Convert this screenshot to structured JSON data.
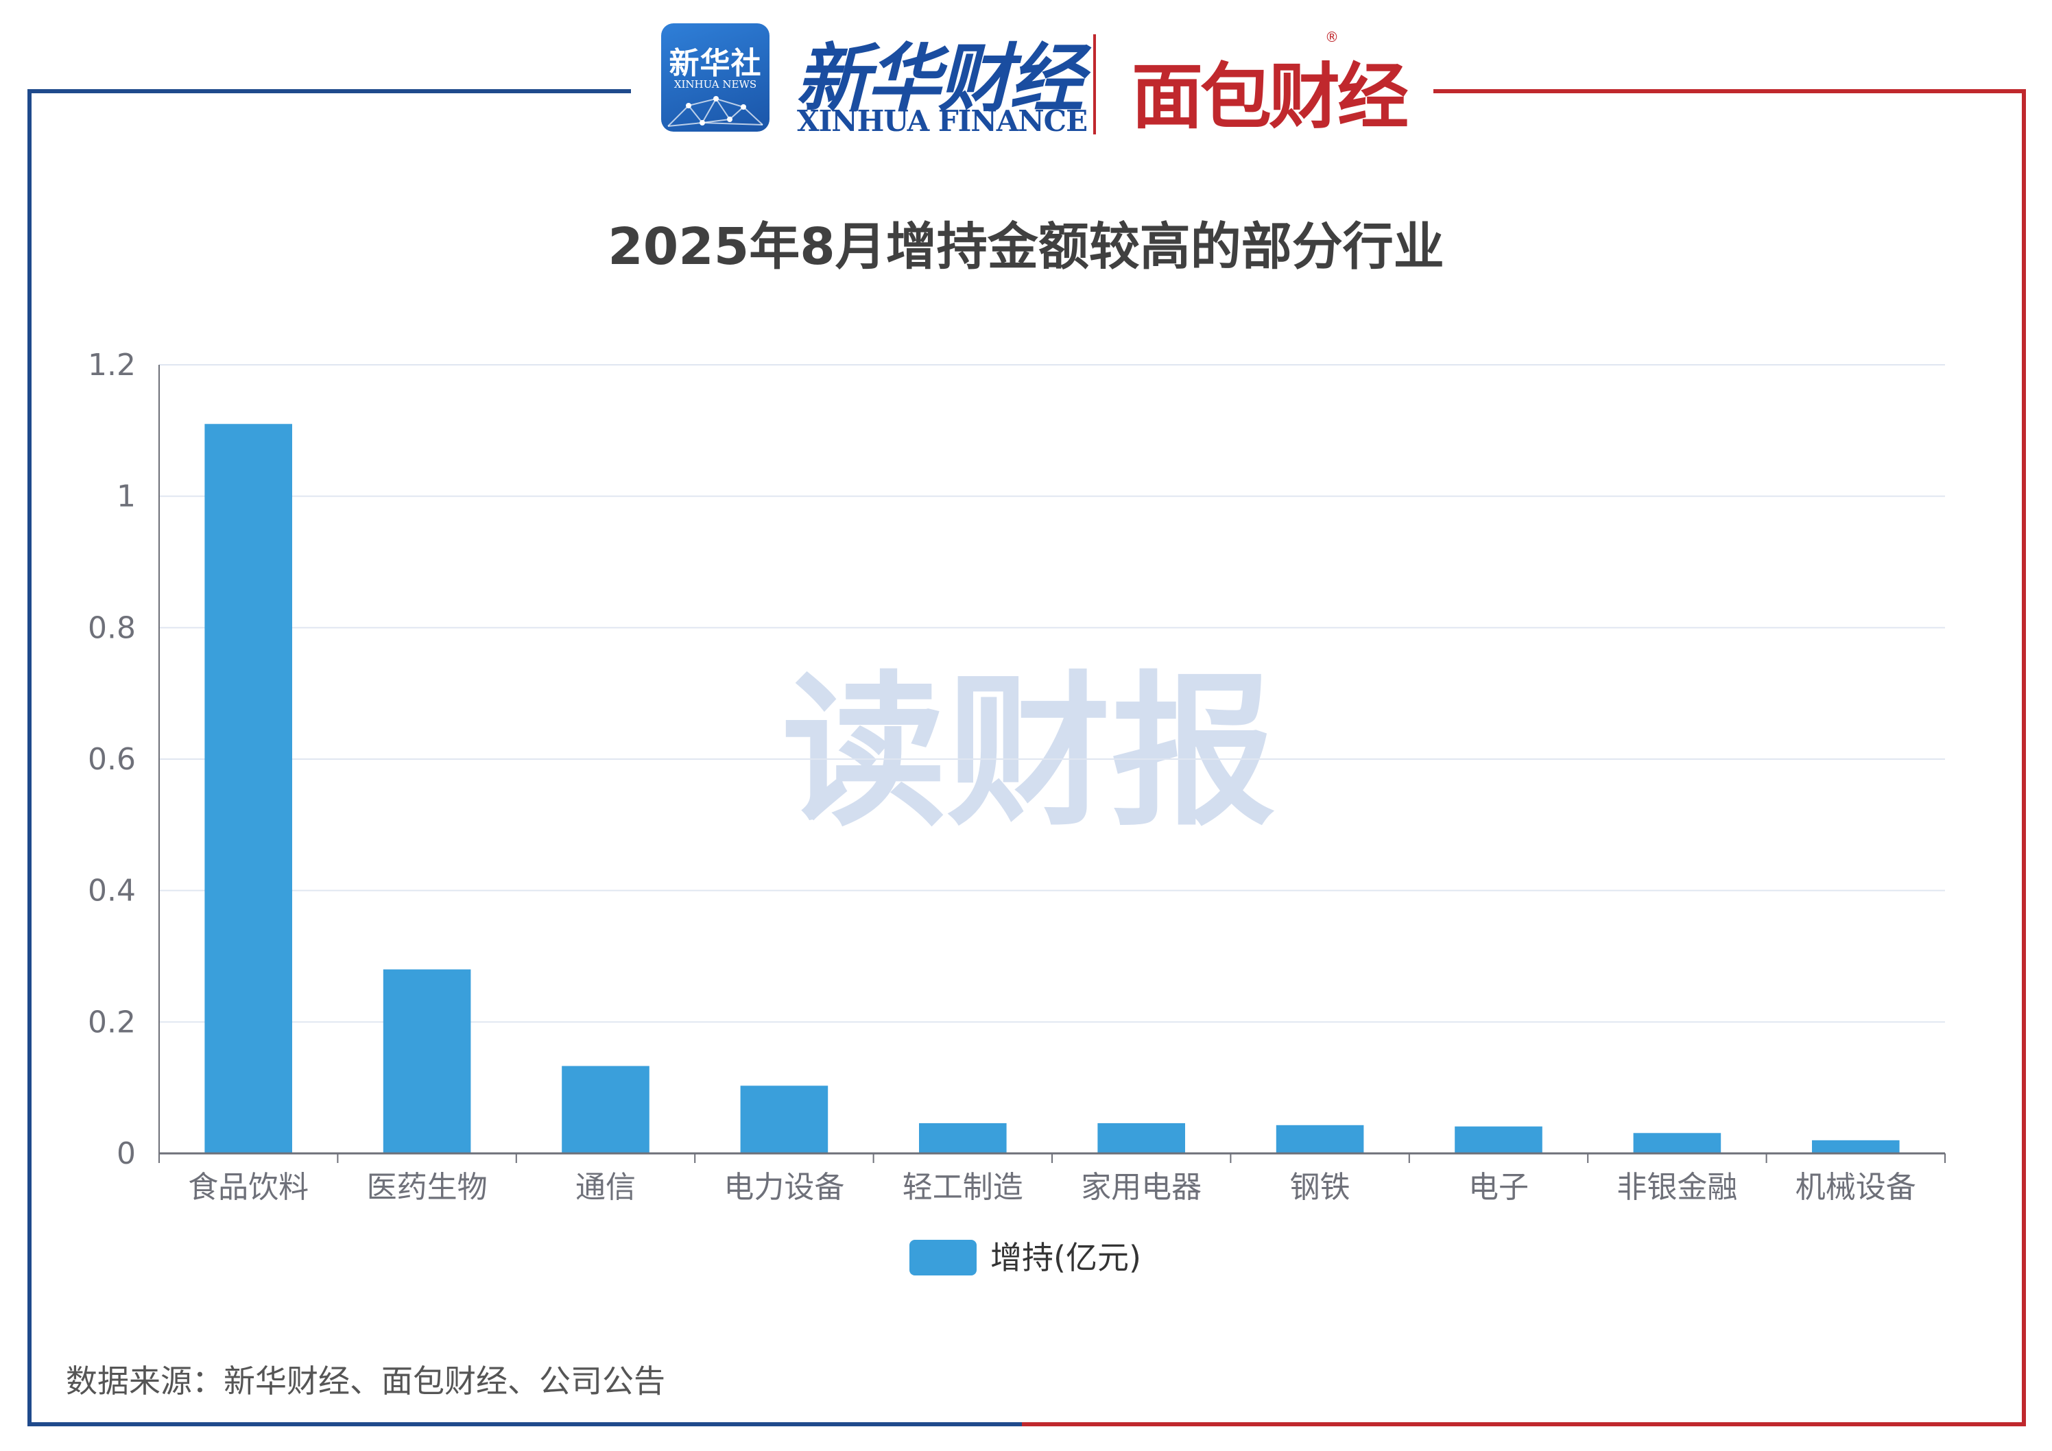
{
  "header": {
    "xinhua_news_cn": "新华社",
    "xinhua_news_en": "XINHUA NEWS",
    "xinhua_finance_cn": "新华财经",
    "xinhua_finance_en": "XINHUA FINANCE",
    "mianbao_cn": "面包财经",
    "registered_mark": "®"
  },
  "watermark": "读财报",
  "source": "数据来源：新华财经、面包财经、公司公告",
  "colors": {
    "bar": "#3a9fdb",
    "frame_left": "#1f4a8c",
    "frame_right": "#c0282d",
    "grid": "#e0e6f1",
    "axis": "#6e7079"
  },
  "chart_data": {
    "type": "bar",
    "title": "2025年8月增持金额较高的部分行业",
    "categories": [
      "食品饮料",
      "医药生物",
      "通信",
      "电力设备",
      "轻工制造",
      "家用电器",
      "钢铁",
      "电子",
      "非银金融",
      "机械设备"
    ],
    "series": [
      {
        "name": "增持(亿元)",
        "values": [
          1.11,
          0.28,
          0.133,
          0.103,
          0.046,
          0.046,
          0.043,
          0.041,
          0.031,
          0.02
        ]
      }
    ],
    "ylim": [
      0,
      1.2
    ],
    "yticks": [
      "0",
      "0.2",
      "0.4",
      "0.6",
      "0.8",
      "1",
      "1.2"
    ],
    "yticks_values": [
      0,
      0.2,
      0.4,
      0.6,
      0.8,
      1,
      1.2
    ],
    "grid": true,
    "legend": "bottom-center"
  }
}
